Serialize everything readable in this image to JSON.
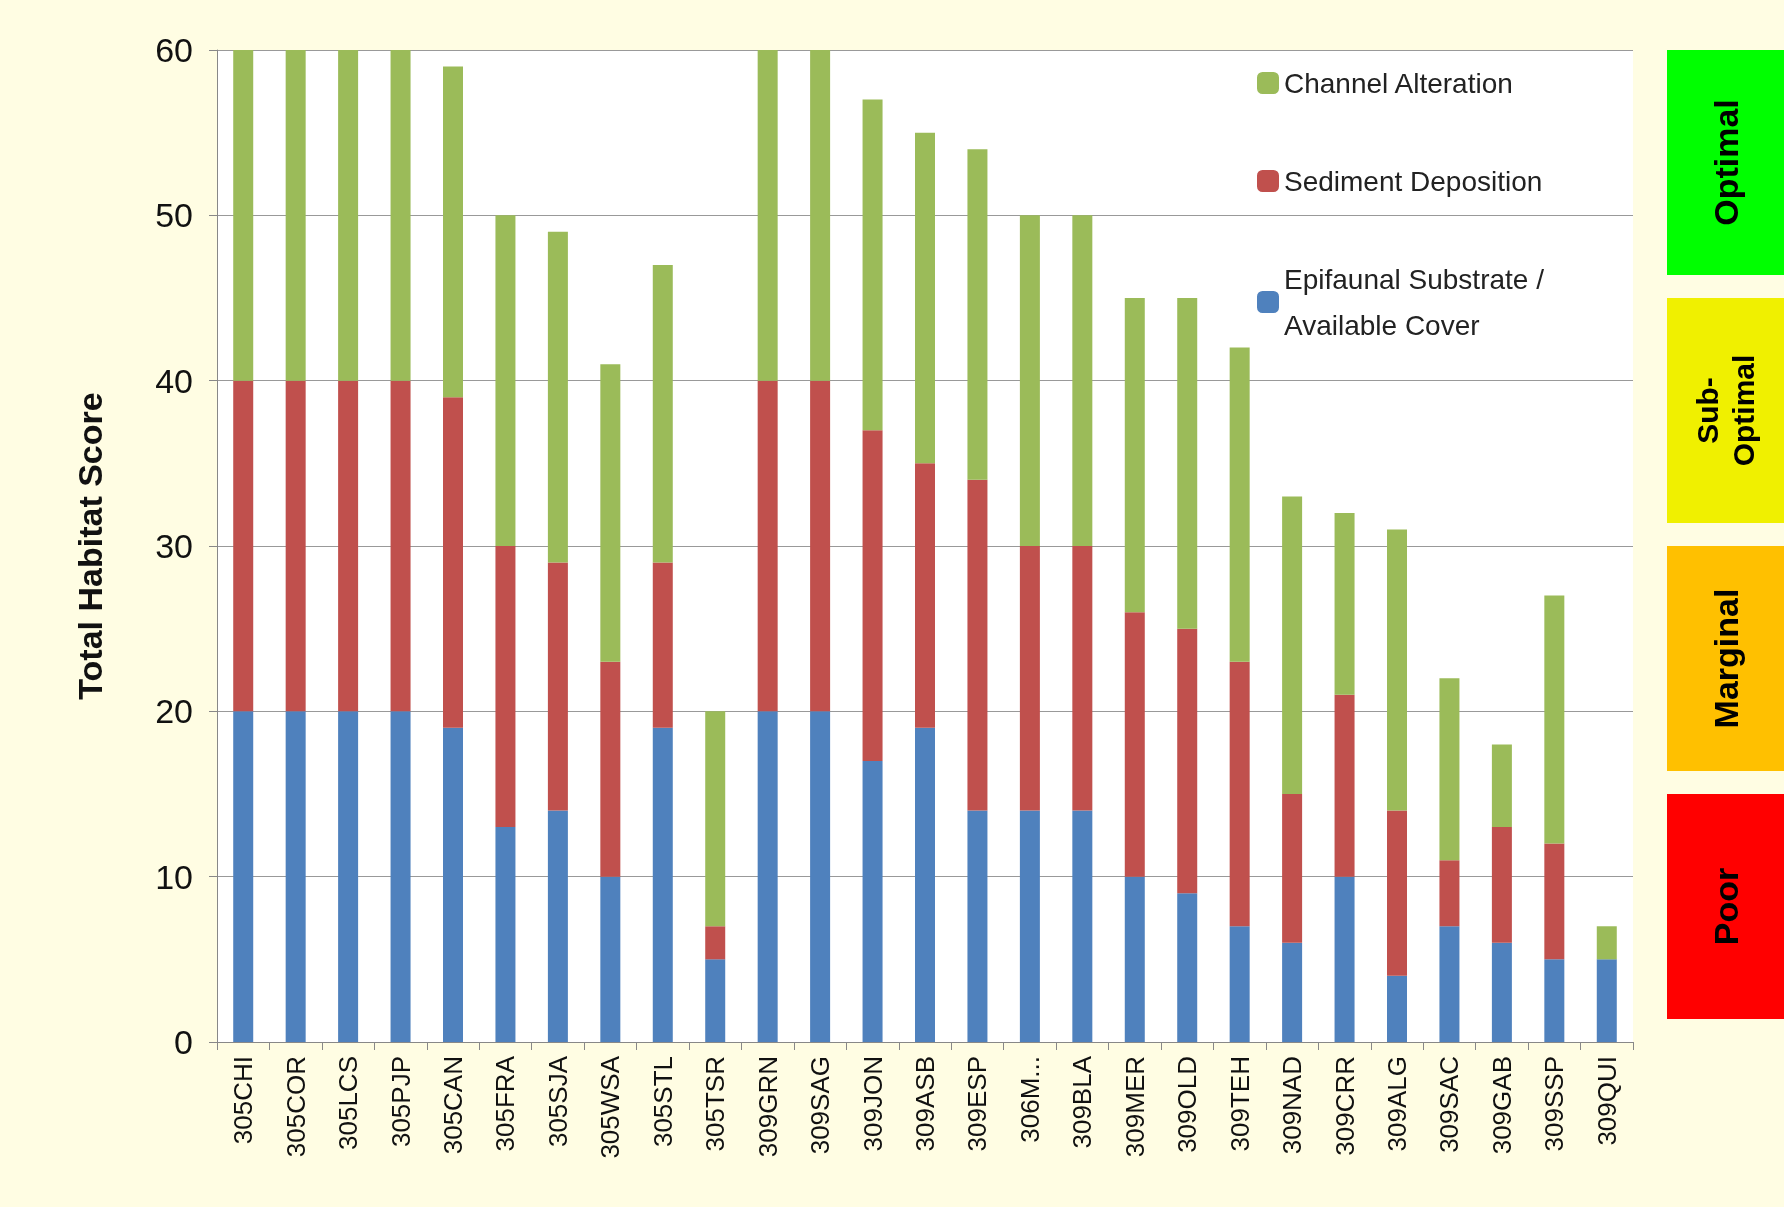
{
  "chart_data": {
    "type": "bar",
    "stacked": true,
    "ylabel": "Total Habitat Score",
    "categories": [
      "305CHI",
      "305COR",
      "305LCS",
      "305PJP",
      "305CAN",
      "305FRA",
      "305SJA",
      "305WSA",
      "305STL",
      "305TSR",
      "309GRN",
      "309SAG",
      "309JON",
      "309ASB",
      "309ESP",
      "306M...",
      "309BLA",
      "309MER",
      "309OLD",
      "309TEH",
      "309NAD",
      "309CRR",
      "309ALG",
      "309SAC",
      "309GAB",
      "309SSP",
      "309QUI"
    ],
    "series": [
      {
        "name": "Epifaunal Substrate / Available Cover",
        "color": "#4f81bd",
        "values": [
          20,
          20,
          20,
          20,
          19,
          13,
          14,
          10,
          19,
          5,
          20,
          20,
          17,
          19,
          14,
          14,
          14,
          10,
          9,
          7,
          6,
          10,
          4,
          7,
          6,
          5,
          5
        ]
      },
      {
        "name": "Sediment Deposition",
        "color": "#c0504d",
        "values": [
          20,
          20,
          20,
          20,
          20,
          17,
          15,
          13,
          10,
          2,
          20,
          20,
          20,
          16,
          20,
          16,
          16,
          16,
          16,
          16,
          9,
          11,
          10,
          4,
          7,
          7,
          0
        ]
      },
      {
        "name": "Channel Alteration",
        "color": "#9bbb59",
        "values": [
          20,
          20,
          20,
          20,
          20,
          20,
          20,
          18,
          18,
          13,
          20,
          20,
          20,
          20,
          20,
          20,
          20,
          19,
          20,
          19,
          18,
          11,
          17,
          11,
          5,
          15,
          2
        ]
      }
    ],
    "ylim": [
      0,
      60
    ],
    "yticks": [
      0,
      10,
      20,
      30,
      40,
      50,
      60
    ],
    "grid": "y",
    "legend": "top right",
    "annotations": [
      "Optimal",
      "Sub-Optimal",
      "Marginal",
      "Poor"
    ]
  }
}
